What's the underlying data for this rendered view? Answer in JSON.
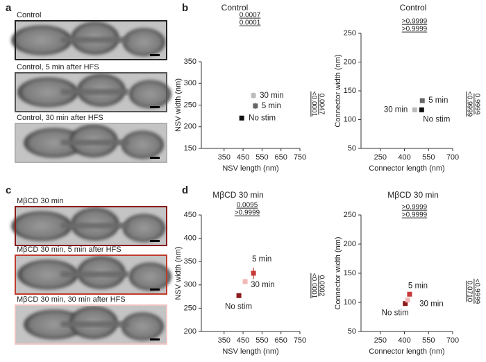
{
  "panels": [
    {
      "letter": "a",
      "images": [
        {
          "label": "Control",
          "color": "#222222"
        },
        {
          "label": "Control, 5 min after HFS",
          "color": "#555555"
        },
        {
          "label": "Control, 30 min after HFS",
          "color": "#b0b0b0"
        }
      ]
    },
    {
      "letter": "b"
    },
    {
      "letter": "c",
      "images": [
        {
          "label": "MβCD 30 min",
          "color": "#8b1a1a"
        },
        {
          "label": "MβCD 30 min, 5 min after HFS",
          "color": "#c0392b"
        },
        {
          "label": "MβCD 30 min, 30 min after HFS",
          "color": "#f0c4c4"
        }
      ]
    },
    {
      "letter": "d"
    }
  ],
  "chart_data": [
    {
      "type": "scatter",
      "title": "Control",
      "title_color": "#222222",
      "xlabel": "NSV length (nm)",
      "ylabel": "NSV width (nm)",
      "xlim": [
        230,
        750
      ],
      "xticks": [
        350,
        450,
        550,
        650,
        750
      ],
      "ylim": [
        150,
        350
      ],
      "yticks": [
        150,
        200,
        250,
        300,
        350
      ],
      "series": [
        {
          "name": "No stim",
          "color": "#111111",
          "x": [
            443
          ],
          "values": [
            220
          ],
          "xerr": [
            8
          ],
          "yerr": [
            5
          ]
        },
        {
          "name": "5 min",
          "color": "#666666",
          "x": [
            515
          ],
          "values": [
            248
          ],
          "xerr": [
            10
          ],
          "yerr": [
            7
          ]
        },
        {
          "name": "30 min",
          "color": "#bbbbbb",
          "x": [
            505
          ],
          "values": [
            272
          ],
          "xerr": [
            10
          ],
          "yerr": [
            7
          ]
        }
      ],
      "annotations_top": [
        "0.0007",
        "0.0001"
      ],
      "annotations_right": [
        "<0.0001",
        "0.0047"
      ]
    },
    {
      "type": "scatter",
      "title": "Control",
      "title_color": "#222222",
      "xlabel": "Connector length (nm)",
      "ylabel": "Connector width (nm)",
      "xlim": [
        130,
        700
      ],
      "xticks": [
        250,
        400,
        550,
        700
      ],
      "ylim": [
        50,
        250
      ],
      "yticks": [
        50,
        100,
        150,
        200,
        250
      ],
      "series": [
        {
          "name": "No stim",
          "color": "#111111",
          "x": [
            507
          ],
          "values": [
            117
          ],
          "xerr": [
            12
          ],
          "yerr": [
            3
          ]
        },
        {
          "name": "5 min",
          "color": "#666666",
          "x": [
            511
          ],
          "values": [
            133
          ],
          "xerr": [
            12
          ],
          "yerr": [
            4
          ]
        },
        {
          "name": "30 min",
          "color": "#bbbbbb",
          "x": [
            464
          ],
          "values": [
            117
          ],
          "xerr": [
            12
          ],
          "yerr": [
            3
          ]
        }
      ],
      "annotations_top": [
        ">0.9999",
        ">0.9999"
      ],
      "annotations_right": [
        "<0.9999",
        "0.9999"
      ]
    },
    {
      "type": "scatter",
      "title": "MβCD 30 min",
      "title_color": "#8b1a1a",
      "xlabel": "NSV length (nm)",
      "ylabel": "NSV width (nm)",
      "xlim": [
        230,
        750
      ],
      "xticks": [
        350,
        450,
        550,
        650,
        750
      ],
      "ylim": [
        200,
        450
      ],
      "yticks": [
        200,
        250,
        300,
        350,
        400,
        450
      ],
      "series": [
        {
          "name": "No stim",
          "color": "#8b1a1a",
          "x": [
            428
          ],
          "values": [
            277
          ],
          "xerr": [
            8
          ],
          "yerr": [
            5
          ]
        },
        {
          "name": "5 min",
          "color": "#c83a3a",
          "x": [
            505
          ],
          "values": [
            325
          ],
          "xerr": [
            12
          ],
          "yerr": [
            12
          ]
        },
        {
          "name": "30 min",
          "color": "#f2b8b8",
          "x": [
            461
          ],
          "values": [
            307
          ],
          "xerr": [
            8
          ],
          "yerr": [
            6
          ]
        }
      ],
      "annotations_top": [
        "0.0095",
        ">0.9999"
      ],
      "annotations_right": [
        "<0.0001",
        "0.0002"
      ]
    },
    {
      "type": "scatter",
      "title": "MβCD 30 min",
      "title_color": "#8b1a1a",
      "xlabel": "Connector length (nm)",
      "ylabel": "Connector width (nm)",
      "xlim": [
        130,
        700
      ],
      "xticks": [
        250,
        400,
        550,
        700
      ],
      "ylim": [
        50,
        250
      ],
      "yticks": [
        50,
        100,
        150,
        200,
        250
      ],
      "series": [
        {
          "name": "No stim",
          "color": "#8b1a1a",
          "x": [
            405
          ],
          "values": [
            98
          ],
          "xerr": [
            10
          ],
          "yerr": [
            3
          ]
        },
        {
          "name": "5 min",
          "color": "#c83a3a",
          "x": [
            432
          ],
          "values": [
            114
          ],
          "xerr": [
            12
          ],
          "yerr": [
            4
          ]
        },
        {
          "name": "30 min",
          "color": "#f2b8b8",
          "x": [
            420
          ],
          "values": [
            104
          ],
          "xerr": [
            10
          ],
          "yerr": [
            3
          ]
        }
      ],
      "annotations_top": [
        ">0.9999",
        ">0.9999"
      ],
      "annotations_right": [
        "0.0710",
        "<0.9999"
      ]
    }
  ]
}
